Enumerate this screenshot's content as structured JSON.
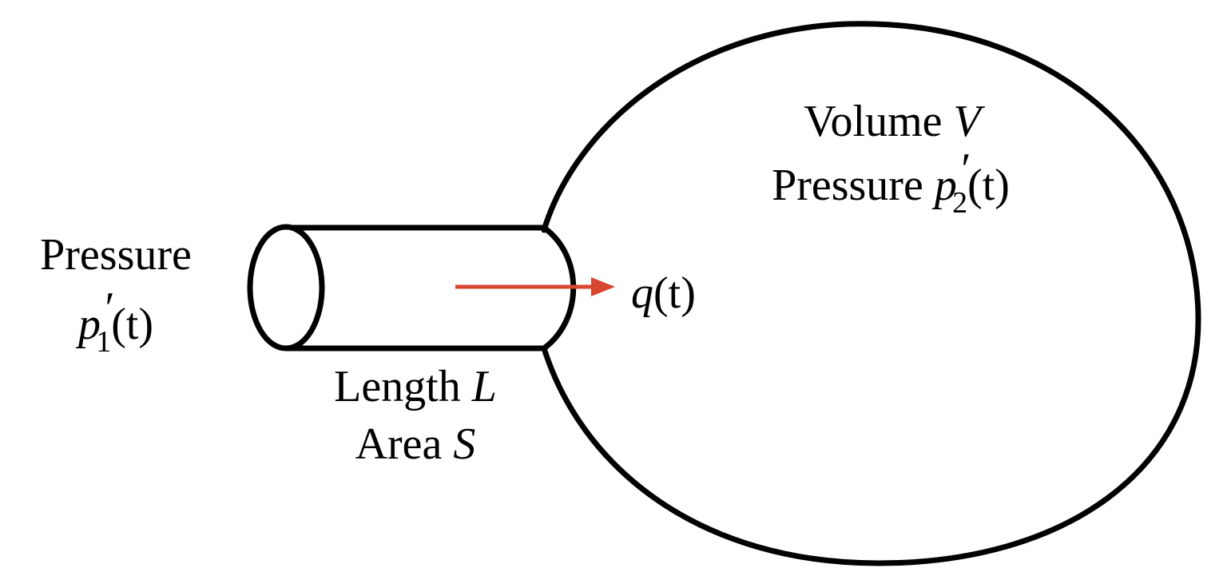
{
  "colors": {
    "outline": "#000000",
    "flow_arrow": "#d9462f",
    "background": "#ffffff"
  },
  "inlet": {
    "label": "Pressure",
    "symbol": "p",
    "prime": "′",
    "subscript": "1",
    "argument": "(t)"
  },
  "tube": {
    "length_label": "Length",
    "length_symbol": "L",
    "area_label": "Area",
    "area_symbol": "S"
  },
  "flow": {
    "symbol": "q",
    "argument": "(t)"
  },
  "vessel": {
    "volume_label": "Volume",
    "volume_symbol": "V",
    "pressure_label": "Pressure",
    "symbol": "p",
    "prime": "′",
    "subscript": "2",
    "argument": "(t)"
  }
}
